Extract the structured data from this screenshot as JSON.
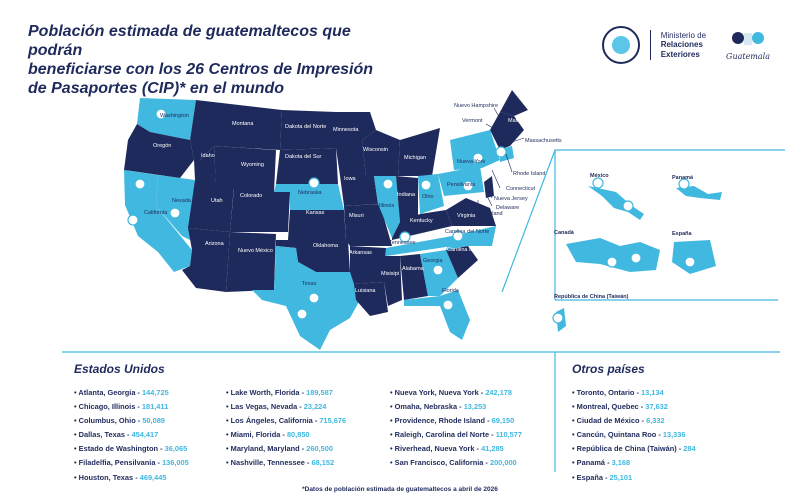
{
  "title_lines": [
    "Población estimada de guatemaltecos que podrán",
    "beneficiarse con los 26 Centros de Impresión",
    "de Pasaportes (CIP)* en el mundo"
  ],
  "logos": {
    "ministry_line1": "Ministerio de",
    "ministry_line2": "Relaciones",
    "ministry_line3": "Exteriores",
    "guatemala_word": "Guatemala"
  },
  "colors": {
    "navy": "#1f2a5c",
    "light_blue": "#40b8e0"
  },
  "map_labels": {
    "washington": "Washington",
    "montana": "Montana",
    "dakota_norte": "Dakota del Norte",
    "minnesota": "Minnesota",
    "oregon": "Oregón",
    "idaho": "Idaho",
    "wyoming": "Wyoming",
    "dakota_sur": "Dakota del Sur",
    "wisconsin": "Wisconsin",
    "michigan": "Michigan",
    "nueva_york": "Nueva York",
    "pensilvania": "Pensilvania",
    "iowa": "Iowa",
    "nebraska": "Nebraska",
    "nevada": "Nevada",
    "utah": "Utah",
    "colorado": "Colorado",
    "illinois": "Illinois",
    "indiana": "Indiana",
    "ohio": "Ohio",
    "california": "California",
    "kansas": "Kansas",
    "misuri": "Misuri",
    "kentucky": "Kentucky",
    "virginia": "Virginia",
    "arizona": "Arizona",
    "nuevo_mexico": "Nuevo México",
    "oklahoma": "Oklahoma",
    "arkansas": "Arkansas",
    "tennessee": "Tennessee",
    "carolina_norte": "Carolina del Norte",
    "carolina_sur": "Carolina del Sur",
    "texas": "Texas",
    "luisiana": "Luisiana",
    "misisipi": "Misisipi",
    "alabama": "Alabama",
    "georgia": "Georgia",
    "florida": "Florida",
    "nuevo_hampshire": "Nuevo Hampshire",
    "vermont": "Vermont",
    "maine": "Maine",
    "massachusetts": "Massachusetts",
    "rhode_island": "Rhode Island",
    "connecticut": "Connecticut",
    "nueva_jersey": "Nueva Jersey",
    "delaware": "Delaware",
    "maryland": "Maryland",
    "mexico": "México",
    "panama": "Panamá",
    "canada": "Canadá",
    "espana": "España",
    "taiwan": "República de China (Taiwán)"
  },
  "sections": {
    "estados_unidos": "Estados Unidos",
    "otros_paises": "Otros países"
  },
  "us_columns": [
    [
      {
        "name": "Atlanta, Georgia",
        "value": "144,725"
      },
      {
        "name": "Chicago, Illinois",
        "value": "181,411"
      },
      {
        "name": "Columbus, Ohio",
        "value": "50,089"
      },
      {
        "name": "Dallas, Texas",
        "value": "454,417"
      },
      {
        "name": "Estado de Washington",
        "value": "36,065"
      },
      {
        "name": "Filadelfia, Pensilvania",
        "value": "136,005"
      },
      {
        "name": "Houston, Texas",
        "value": "469,445"
      }
    ],
    [
      {
        "name": "Lake Worth, Florida",
        "value": "189,587"
      },
      {
        "name": "Las Vegas, Nevada",
        "value": "23,224"
      },
      {
        "name": "Los Ángeles, California",
        "value": "715,676"
      },
      {
        "name": "Miami, Florida",
        "value": "80,850"
      },
      {
        "name": "Maryland, Maryland",
        "value": "260,500"
      },
      {
        "name": "Nashville, Tennessee",
        "value": "68,152"
      }
    ],
    [
      {
        "name": "Nueva York, Nueva York",
        "value": "242,178"
      },
      {
        "name": "Omaha, Nebraska",
        "value": "13,253"
      },
      {
        "name": "Providence, Rhode Island",
        "value": "69,150"
      },
      {
        "name": "Raleigh, Carolina del Norte",
        "value": "110,577"
      },
      {
        "name": "Riverhead, Nueva York",
        "value": "41,285"
      },
      {
        "name": "San Francisco, California",
        "value": "200,000"
      }
    ]
  ],
  "other_countries": [
    {
      "name": "Toronto, Ontario",
      "value": "13,134"
    },
    {
      "name": "Montreal, Quebec",
      "value": "37,632"
    },
    {
      "name": "Ciudad de México",
      "value": "6,332"
    },
    {
      "name": "Cancún, Quintana Roo",
      "value": "13,336"
    },
    {
      "name": "República de China (Taiwán)",
      "value": "284"
    },
    {
      "name": "Panamá",
      "value": "3,168"
    },
    {
      "name": "España",
      "value": "25,101"
    }
  ],
  "footnote": "*Datos de población estimada de guatemaltecos a abril de 2026"
}
